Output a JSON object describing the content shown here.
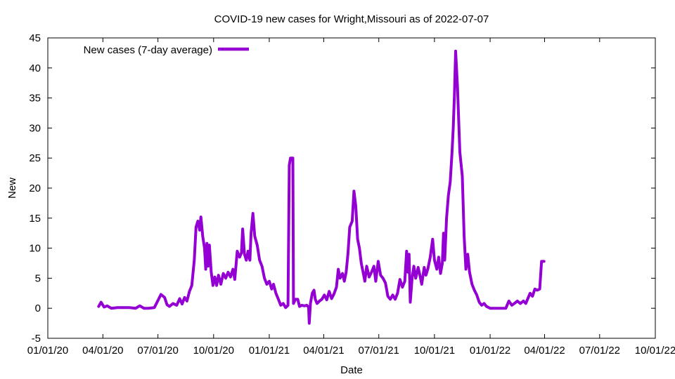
{
  "chart_data": {
    "type": "line",
    "title": "COVID-19 new cases for Wright,Missouri as of 2022-07-07",
    "xlabel": "Date",
    "ylabel": "New",
    "xlim": [
      "2020-01-01",
      "2022-10-01"
    ],
    "ylim": [
      -5,
      45
    ],
    "x_ticks": [
      {
        "date": "2020-01-01",
        "label": "01/01/20"
      },
      {
        "date": "2020-04-01",
        "label": "04/01/20"
      },
      {
        "date": "2020-07-01",
        "label": "07/01/20"
      },
      {
        "date": "2020-10-01",
        "label": "10/01/20"
      },
      {
        "date": "2021-01-01",
        "label": "01/01/21"
      },
      {
        "date": "2021-04-01",
        "label": "04/01/21"
      },
      {
        "date": "2021-07-01",
        "label": "07/01/21"
      },
      {
        "date": "2021-10-01",
        "label": "10/01/21"
      },
      {
        "date": "2022-01-01",
        "label": "01/01/22"
      },
      {
        "date": "2022-04-01",
        "label": "04/01/22"
      },
      {
        "date": "2022-07-01",
        "label": "07/01/22"
      },
      {
        "date": "2022-10-01",
        "label": "10/01/22"
      }
    ],
    "y_ticks": [
      -5,
      0,
      5,
      10,
      15,
      20,
      25,
      30,
      35,
      40,
      45
    ],
    "legend_position": "top-left",
    "grid": false,
    "series": [
      {
        "name": "New cases (7-day average)",
        "color": "#9400d3",
        "points": [
          [
            "2020-03-25",
            0.3
          ],
          [
            "2020-03-29",
            1.0
          ],
          [
            "2020-04-03",
            0.2
          ],
          [
            "2020-04-08",
            0.4
          ],
          [
            "2020-04-15",
            0.0
          ],
          [
            "2020-04-25",
            0.1
          ],
          [
            "2020-05-05",
            0.1
          ],
          [
            "2020-05-15",
            0.1
          ],
          [
            "2020-05-25",
            0.0
          ],
          [
            "2020-06-01",
            0.4
          ],
          [
            "2020-06-08",
            0.0
          ],
          [
            "2020-06-15",
            0.0
          ],
          [
            "2020-06-25",
            0.1
          ],
          [
            "2020-07-02",
            1.5
          ],
          [
            "2020-07-06",
            2.3
          ],
          [
            "2020-07-12",
            1.8
          ],
          [
            "2020-07-16",
            0.6
          ],
          [
            "2020-07-20",
            0.3
          ],
          [
            "2020-07-26",
            0.8
          ],
          [
            "2020-08-01",
            0.5
          ],
          [
            "2020-08-06",
            1.6
          ],
          [
            "2020-08-10",
            0.7
          ],
          [
            "2020-08-14",
            1.8
          ],
          [
            "2020-08-18",
            1.2
          ],
          [
            "2020-08-22",
            2.8
          ],
          [
            "2020-08-26",
            3.8
          ],
          [
            "2020-08-30",
            8.0
          ],
          [
            "2020-09-02",
            13.5
          ],
          [
            "2020-09-05",
            14.5
          ],
          [
            "2020-09-08",
            13.0
          ],
          [
            "2020-09-10",
            15.2
          ],
          [
            "2020-09-13",
            12.0
          ],
          [
            "2020-09-16",
            10.0
          ],
          [
            "2020-09-18",
            6.5
          ],
          [
            "2020-09-20",
            10.8
          ],
          [
            "2020-09-22",
            7.0
          ],
          [
            "2020-09-24",
            10.5
          ],
          [
            "2020-09-27",
            6.0
          ],
          [
            "2020-09-30",
            3.8
          ],
          [
            "2020-10-03",
            5.2
          ],
          [
            "2020-10-06",
            3.8
          ],
          [
            "2020-10-09",
            5.5
          ],
          [
            "2020-10-13",
            4.0
          ],
          [
            "2020-10-17",
            5.8
          ],
          [
            "2020-10-21",
            5.0
          ],
          [
            "2020-10-25",
            6.0
          ],
          [
            "2020-10-29",
            5.2
          ],
          [
            "2020-11-02",
            6.5
          ],
          [
            "2020-11-05",
            4.8
          ],
          [
            "2020-11-09",
            9.5
          ],
          [
            "2020-11-13",
            8.5
          ],
          [
            "2020-11-16",
            9.2
          ],
          [
            "2020-11-18",
            13.2
          ],
          [
            "2020-11-21",
            9.0
          ],
          [
            "2020-11-24",
            8.0
          ],
          [
            "2020-11-27",
            9.5
          ],
          [
            "2020-11-30",
            8.0
          ],
          [
            "2020-12-02",
            12.5
          ],
          [
            "2020-12-05",
            15.8
          ],
          [
            "2020-12-08",
            12.0
          ],
          [
            "2020-12-12",
            10.5
          ],
          [
            "2020-12-16",
            8.0
          ],
          [
            "2020-12-20",
            7.0
          ],
          [
            "2020-12-24",
            5.0
          ],
          [
            "2020-12-28",
            4.0
          ],
          [
            "2021-01-01",
            4.5
          ],
          [
            "2021-01-05",
            3.2
          ],
          [
            "2021-01-08",
            4.0
          ],
          [
            "2021-01-12",
            2.5
          ],
          [
            "2021-01-16",
            1.5
          ],
          [
            "2021-01-20",
            0.5
          ],
          [
            "2021-01-24",
            0.8
          ],
          [
            "2021-01-28",
            0.1
          ],
          [
            "2021-02-01",
            0.5
          ],
          [
            "2021-02-03",
            23.8
          ],
          [
            "2021-02-05",
            25.0
          ],
          [
            "2021-02-09",
            25.0
          ],
          [
            "2021-02-10",
            0.8
          ],
          [
            "2021-02-13",
            1.5
          ],
          [
            "2021-02-17",
            1.5
          ],
          [
            "2021-02-20",
            0.3
          ],
          [
            "2021-02-24",
            0.5
          ],
          [
            "2021-02-28",
            0.4
          ],
          [
            "2021-03-04",
            0.5
          ],
          [
            "2021-03-07",
            0.2
          ],
          [
            "2021-03-08",
            -2.5
          ],
          [
            "2021-03-10",
            0.8
          ],
          [
            "2021-03-13",
            2.5
          ],
          [
            "2021-03-16",
            3.0
          ],
          [
            "2021-03-18",
            1.5
          ],
          [
            "2021-03-21",
            0.8
          ],
          [
            "2021-03-25",
            1.2
          ],
          [
            "2021-03-29",
            1.5
          ],
          [
            "2021-04-02",
            2.2
          ],
          [
            "2021-04-06",
            1.4
          ],
          [
            "2021-04-10",
            2.8
          ],
          [
            "2021-04-14",
            1.6
          ],
          [
            "2021-04-18",
            2.4
          ],
          [
            "2021-04-22",
            3.5
          ],
          [
            "2021-04-25",
            6.5
          ],
          [
            "2021-04-28",
            5.0
          ],
          [
            "2021-05-02",
            5.8
          ],
          [
            "2021-05-05",
            4.5
          ],
          [
            "2021-05-08",
            6.0
          ],
          [
            "2021-05-11",
            9.0
          ],
          [
            "2021-05-14",
            13.5
          ],
          [
            "2021-05-18",
            14.5
          ],
          [
            "2021-05-21",
            19.5
          ],
          [
            "2021-05-24",
            17.0
          ],
          [
            "2021-05-27",
            11.5
          ],
          [
            "2021-05-30",
            10.0
          ],
          [
            "2021-06-02",
            7.5
          ],
          [
            "2021-06-05",
            6.0
          ],
          [
            "2021-06-08",
            4.5
          ],
          [
            "2021-06-11",
            7.0
          ],
          [
            "2021-06-15",
            5.2
          ],
          [
            "2021-06-19",
            6.0
          ],
          [
            "2021-06-23",
            7.0
          ],
          [
            "2021-06-26",
            4.5
          ],
          [
            "2021-06-30",
            7.8
          ],
          [
            "2021-07-04",
            5.5
          ],
          [
            "2021-07-08",
            5.0
          ],
          [
            "2021-07-12",
            4.2
          ],
          [
            "2021-07-16",
            2.0
          ],
          [
            "2021-07-20",
            1.5
          ],
          [
            "2021-07-24",
            2.2
          ],
          [
            "2021-07-28",
            1.5
          ],
          [
            "2021-08-01",
            2.5
          ],
          [
            "2021-08-05",
            4.8
          ],
          [
            "2021-08-09",
            3.5
          ],
          [
            "2021-08-13",
            4.5
          ],
          [
            "2021-08-16",
            9.5
          ],
          [
            "2021-08-18",
            6.0
          ],
          [
            "2021-08-20",
            9.0
          ],
          [
            "2021-08-22",
            1.0
          ],
          [
            "2021-08-25",
            5.0
          ],
          [
            "2021-08-28",
            7.0
          ],
          [
            "2021-08-31",
            5.0
          ],
          [
            "2021-09-04",
            6.8
          ],
          [
            "2021-09-07",
            5.5
          ],
          [
            "2021-09-10",
            4.0
          ],
          [
            "2021-09-14",
            6.8
          ],
          [
            "2021-09-17",
            5.5
          ],
          [
            "2021-09-20",
            6.5
          ],
          [
            "2021-09-24",
            8.5
          ],
          [
            "2021-09-28",
            11.5
          ],
          [
            "2021-10-01",
            8.0
          ],
          [
            "2021-10-05",
            6.5
          ],
          [
            "2021-10-08",
            8.5
          ],
          [
            "2021-10-11",
            5.8
          ],
          [
            "2021-10-14",
            7.5
          ],
          [
            "2021-10-16",
            12.5
          ],
          [
            "2021-10-18",
            8.0
          ],
          [
            "2021-10-21",
            15.0
          ],
          [
            "2021-10-24",
            18.8
          ],
          [
            "2021-10-27",
            21.0
          ],
          [
            "2021-10-30",
            26.0
          ],
          [
            "2021-11-01",
            30.0
          ],
          [
            "2021-11-03",
            35.5
          ],
          [
            "2021-11-05",
            42.8
          ],
          [
            "2021-11-08",
            37.0
          ],
          [
            "2021-11-12",
            26.0
          ],
          [
            "2021-11-16",
            22.0
          ],
          [
            "2021-11-19",
            12.0
          ],
          [
            "2021-11-22",
            6.5
          ],
          [
            "2021-11-25",
            9.0
          ],
          [
            "2021-11-28",
            6.0
          ],
          [
            "2021-12-02",
            4.0
          ],
          [
            "2021-12-06",
            3.0
          ],
          [
            "2021-12-10",
            2.2
          ],
          [
            "2021-12-14",
            1.0
          ],
          [
            "2021-12-18",
            0.5
          ],
          [
            "2021-12-22",
            0.8
          ],
          [
            "2021-12-26",
            0.3
          ],
          [
            "2022-01-01",
            0.0
          ],
          [
            "2022-01-10",
            0.0
          ],
          [
            "2022-01-20",
            0.0
          ],
          [
            "2022-01-27",
            0.0
          ],
          [
            "2022-02-01",
            1.2
          ],
          [
            "2022-02-06",
            0.5
          ],
          [
            "2022-02-10",
            0.8
          ],
          [
            "2022-02-15",
            1.2
          ],
          [
            "2022-02-20",
            0.8
          ],
          [
            "2022-02-25",
            1.2
          ],
          [
            "2022-03-01",
            0.8
          ],
          [
            "2022-03-08",
            2.5
          ],
          [
            "2022-03-12",
            2.0
          ],
          [
            "2022-03-16",
            3.2
          ],
          [
            "2022-03-20",
            3.0
          ],
          [
            "2022-03-24",
            3.2
          ],
          [
            "2022-03-27",
            7.8
          ],
          [
            "2022-03-31",
            7.8
          ]
        ]
      }
    ]
  }
}
